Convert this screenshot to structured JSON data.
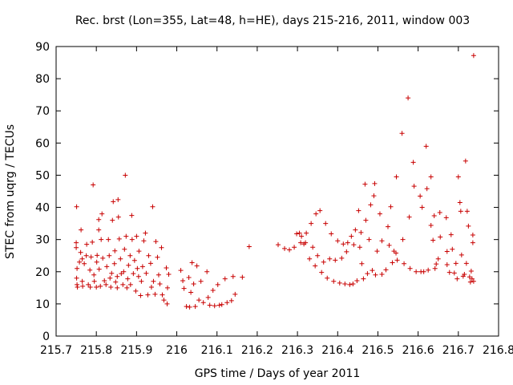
{
  "chart_data": {
    "type": "scatter",
    "title": "Rec. brst (Lon=355, Lat=48, h=HE), days 215-216, 2011, window 003",
    "xlabel": "GPS time / Days of year 2011",
    "ylabel": "STEC from uqrg / TECUs",
    "xlim": [
      215.7,
      216.8
    ],
    "ylim": [
      0,
      90
    ],
    "xticks": [
      "215.7",
      "215.8",
      "215.9",
      "216",
      "216.1",
      "216.2",
      "216.3",
      "216.4",
      "216.5",
      "216.6",
      "216.7",
      "216.8"
    ],
    "xtick_values": [
      215.7,
      215.8,
      215.9,
      216.0,
      216.1,
      216.2,
      216.3,
      216.4,
      216.5,
      216.6,
      216.7,
      216.8
    ],
    "yticks": [
      "0",
      "10",
      "20",
      "30",
      "40",
      "50",
      "60",
      "70",
      "80",
      "90"
    ],
    "ytick_values": [
      0,
      10,
      20,
      30,
      40,
      50,
      60,
      70,
      80,
      90
    ],
    "marker": "+",
    "color": "#c80000",
    "grid": false,
    "legend": "none",
    "series": [
      {
        "name": "STEC",
        "points": [
          [
            215.751,
            40.2
          ],
          [
            215.75,
            29
          ],
          [
            215.75,
            27.5
          ],
          [
            215.752,
            21
          ],
          [
            215.751,
            18
          ],
          [
            215.752,
            16
          ],
          [
            215.753,
            15.2
          ],
          [
            215.758,
            23
          ],
          [
            215.761,
            26
          ],
          [
            215.762,
            33
          ],
          [
            215.765,
            24
          ],
          [
            215.765,
            17
          ],
          [
            215.766,
            15.5
          ],
          [
            215.77,
            22.5
          ],
          [
            215.775,
            25
          ],
          [
            215.776,
            28.5
          ],
          [
            215.78,
            16
          ],
          [
            215.784,
            20.5
          ],
          [
            215.785,
            15.2
          ],
          [
            215.787,
            24.6
          ],
          [
            215.79,
            29.2
          ],
          [
            215.792,
            47
          ],
          [
            215.794,
            19
          ],
          [
            215.795,
            17
          ],
          [
            215.8,
            15.2
          ],
          [
            215.801,
            23
          ],
          [
            215.802,
            25.1
          ],
          [
            215.806,
            33
          ],
          [
            215.806,
            36.2
          ],
          [
            215.807,
            20.8
          ],
          [
            215.81,
            15.5
          ],
          [
            215.812,
            30
          ],
          [
            215.814,
            38
          ],
          [
            215.816,
            24.2
          ],
          [
            215.82,
            17.2
          ],
          [
            215.824,
            16
          ],
          [
            215.826,
            21.6
          ],
          [
            215.83,
            30
          ],
          [
            215.832,
            25
          ],
          [
            215.834,
            18
          ],
          [
            215.836,
            15.2
          ],
          [
            215.838,
            19.5
          ],
          [
            215.84,
            36
          ],
          [
            215.842,
            41.8
          ],
          [
            215.845,
            22.5
          ],
          [
            215.846,
            26.5
          ],
          [
            215.848,
            16.8
          ],
          [
            215.852,
            18.5
          ],
          [
            215.852,
            15
          ],
          [
            215.854,
            42.4
          ],
          [
            215.855,
            37
          ],
          [
            215.857,
            30.2
          ],
          [
            215.86,
            24
          ],
          [
            215.862,
            19.4
          ],
          [
            215.866,
            16
          ],
          [
            215.868,
            20
          ],
          [
            215.87,
            27
          ],
          [
            215.872,
            50
          ],
          [
            215.874,
            31
          ],
          [
            215.876,
            15
          ],
          [
            215.878,
            17.8
          ],
          [
            215.88,
            22
          ],
          [
            215.884,
            25
          ],
          [
            215.885,
            16
          ],
          [
            215.888,
            37.5
          ],
          [
            215.889,
            30
          ],
          [
            215.892,
            19.4
          ],
          [
            215.895,
            23.5
          ],
          [
            215.898,
            14
          ],
          [
            215.9,
            31
          ],
          [
            215.902,
            21
          ],
          [
            215.905,
            18.5
          ],
          [
            215.906,
            26.4
          ],
          [
            215.91,
            12.6
          ],
          [
            215.912,
            17
          ],
          [
            215.915,
            21.6
          ],
          [
            215.918,
            29.6
          ],
          [
            215.922,
            32
          ],
          [
            215.924,
            19.5
          ],
          [
            215.928,
            12.8
          ],
          [
            215.93,
            25
          ],
          [
            215.935,
            22.6
          ],
          [
            215.937,
            15.2
          ],
          [
            215.94,
            40.2
          ],
          [
            215.942,
            17
          ],
          [
            215.946,
            13
          ],
          [
            215.948,
            29.4
          ],
          [
            215.952,
            24.5
          ],
          [
            215.955,
            19
          ],
          [
            215.958,
            16.2
          ],
          [
            215.962,
            27.5
          ],
          [
            215.964,
            12.8
          ],
          [
            215.968,
            11.2
          ],
          [
            215.974,
            21.2
          ],
          [
            215.976,
            10
          ],
          [
            215.977,
            15
          ],
          [
            215.98,
            19.2
          ],
          [
            216.01,
            20.4
          ],
          [
            216.015,
            17.2
          ],
          [
            216.018,
            14.8
          ],
          [
            216.024,
            9.2
          ],
          [
            216.03,
            18.2
          ],
          [
            216.032,
            9
          ],
          [
            216.035,
            13.6
          ],
          [
            216.038,
            22.8
          ],
          [
            216.042,
            16.2
          ],
          [
            216.046,
            9.2
          ],
          [
            216.05,
            21.8
          ],
          [
            216.055,
            11.2
          ],
          [
            216.06,
            17
          ],
          [
            216.066,
            10.4
          ],
          [
            216.075,
            20
          ],
          [
            216.078,
            12
          ],
          [
            216.082,
            9.6
          ],
          [
            216.09,
            14.2
          ],
          [
            216.094,
            9.4
          ],
          [
            216.102,
            16
          ],
          [
            216.106,
            9.6
          ],
          [
            216.112,
            9.8
          ],
          [
            216.12,
            17.8
          ],
          [
            216.125,
            10.4
          ],
          [
            216.136,
            11
          ],
          [
            216.14,
            18.5
          ],
          [
            216.145,
            13
          ],
          [
            216.163,
            18.3
          ],
          [
            216.18,
            27.8
          ],
          [
            216.252,
            28.4
          ],
          [
            216.268,
            27.2
          ],
          [
            216.28,
            26.8
          ],
          [
            216.292,
            27.6
          ],
          [
            216.298,
            31.8
          ],
          [
            216.305,
            32
          ],
          [
            216.308,
            29
          ],
          [
            216.31,
            31
          ],
          [
            216.316,
            28.6
          ],
          [
            216.32,
            29
          ],
          [
            216.322,
            32
          ],
          [
            216.33,
            24
          ],
          [
            216.334,
            35
          ],
          [
            216.338,
            27.6
          ],
          [
            216.344,
            21.8
          ],
          [
            216.346,
            38
          ],
          [
            216.35,
            25
          ],
          [
            216.356,
            39
          ],
          [
            216.36,
            19.8
          ],
          [
            216.365,
            23
          ],
          [
            216.37,
            35
          ],
          [
            216.374,
            18
          ],
          [
            216.38,
            24
          ],
          [
            216.384,
            31.8
          ],
          [
            216.39,
            17
          ],
          [
            216.394,
            23.6
          ],
          [
            216.4,
            29.6
          ],
          [
            216.405,
            16.5
          ],
          [
            216.41,
            24.2
          ],
          [
            216.414,
            28.6
          ],
          [
            216.418,
            16.2
          ],
          [
            216.422,
            26.2
          ],
          [
            216.425,
            29
          ],
          [
            216.43,
            16
          ],
          [
            216.434,
            31
          ],
          [
            216.438,
            16.2
          ],
          [
            216.44,
            28.4
          ],
          [
            216.444,
            33
          ],
          [
            216.448,
            17.2
          ],
          [
            216.452,
            39
          ],
          [
            216.455,
            27.6
          ],
          [
            216.458,
            32.2
          ],
          [
            216.46,
            22.5
          ],
          [
            216.464,
            17.8
          ],
          [
            216.468,
            47.2
          ],
          [
            216.47,
            36
          ],
          [
            216.474,
            19.4
          ],
          [
            216.478,
            30
          ],
          [
            216.482,
            40.8
          ],
          [
            216.486,
            20.4
          ],
          [
            216.49,
            43.6
          ],
          [
            216.492,
            47.4
          ],
          [
            216.494,
            19
          ],
          [
            216.498,
            26.4
          ],
          [
            216.505,
            38
          ],
          [
            216.51,
            29.6
          ],
          [
            216.51,
            19.2
          ],
          [
            216.52,
            20.6
          ],
          [
            216.525,
            34
          ],
          [
            216.528,
            28.2
          ],
          [
            216.532,
            40.2
          ],
          [
            216.536,
            22.8
          ],
          [
            216.54,
            26.4
          ],
          [
            216.545,
            25.8
          ],
          [
            216.546,
            49.5
          ],
          [
            216.548,
            23.6
          ],
          [
            216.56,
            63
          ],
          [
            216.562,
            30
          ],
          [
            216.565,
            22.5
          ],
          [
            216.575,
            74
          ],
          [
            216.578,
            37
          ],
          [
            216.58,
            21
          ],
          [
            216.588,
            54
          ],
          [
            216.59,
            46.6
          ],
          [
            216.595,
            20
          ],
          [
            216.605,
            43.5
          ],
          [
            216.607,
            20
          ],
          [
            216.61,
            40
          ],
          [
            216.614,
            20
          ],
          [
            216.62,
            59
          ],
          [
            216.622,
            45.8
          ],
          [
            216.625,
            20.5
          ],
          [
            216.632,
            49.5
          ],
          [
            216.632,
            34.4
          ],
          [
            216.637,
            29.8
          ],
          [
            216.64,
            37.4
          ],
          [
            216.642,
            21
          ],
          [
            216.645,
            22.4
          ],
          [
            216.65,
            24
          ],
          [
            216.654,
            38.4
          ],
          [
            216.655,
            30.8
          ],
          [
            216.67,
            36.8
          ],
          [
            216.672,
            26.3
          ],
          [
            216.672,
            22.2
          ],
          [
            216.678,
            19.8
          ],
          [
            216.682,
            31.5
          ],
          [
            216.685,
            27
          ],
          [
            216.69,
            19.6
          ],
          [
            216.694,
            22.6
          ],
          [
            216.697,
            17.8
          ],
          [
            216.7,
            49.5
          ],
          [
            216.704,
            41.5
          ],
          [
            216.706,
            38.8
          ],
          [
            216.708,
            25.2
          ],
          [
            216.712,
            18.6
          ],
          [
            216.715,
            19.2
          ],
          [
            216.718,
            54.4
          ],
          [
            216.72,
            22.6
          ],
          [
            216.722,
            38.8
          ],
          [
            216.725,
            34.2
          ],
          [
            216.728,
            18.4
          ],
          [
            216.73,
            16.8
          ],
          [
            216.732,
            20.2
          ],
          [
            216.734,
            17.8
          ],
          [
            216.736,
            29
          ],
          [
            216.736,
            31.4
          ],
          [
            216.738,
            87.2
          ],
          [
            216.738,
            17
          ]
        ]
      }
    ]
  }
}
